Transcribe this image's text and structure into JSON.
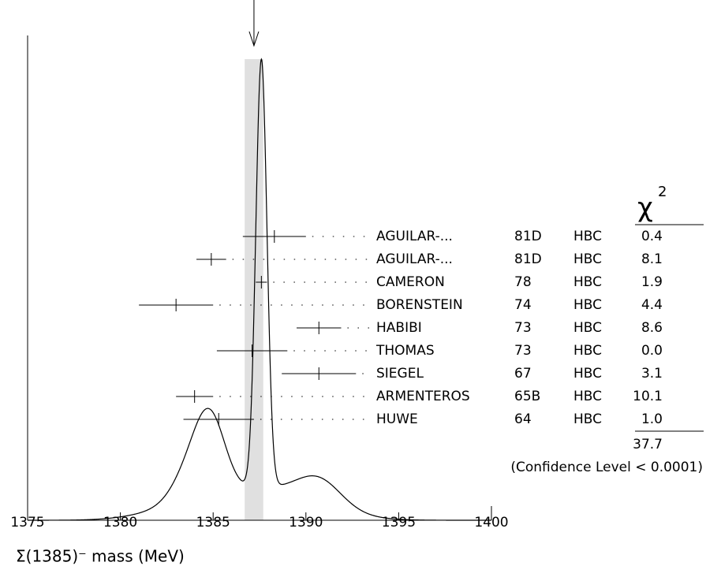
{
  "chart_data": {
    "type": "ideogram",
    "xlim": [
      1375,
      1400
    ],
    "xticks": [
      1375,
      1380,
      1385,
      1390,
      1395,
      1400
    ],
    "x_label": "Σ(1385)⁻ mass (MeV)",
    "average": 1387.2,
    "average_error": 0.5,
    "values": [
      1388.3,
      1384.9,
      1387.6,
      1383.0,
      1390.7,
      1387.1,
      1390.7,
      1384.0,
      1385.3
    ],
    "errors": [
      1.7,
      0.8,
      0.3,
      2.0,
      1.2,
      1.9,
      2.0,
      1.0,
      1.9
    ],
    "names": [
      "AGUILAR-...",
      "AGUILAR-...",
      "CAMERON",
      "BORENSTEIN",
      "HABIBI",
      "THOMAS",
      "SIEGEL",
      "ARMENTEROS",
      "HUWE"
    ],
    "years": [
      "81D",
      "81D",
      "78",
      "74",
      "73",
      "73",
      "67",
      "65B",
      "64"
    ],
    "techniques": [
      "HBC",
      "HBC",
      "HBC",
      "HBC",
      "HBC",
      "HBC",
      "HBC",
      "HBC",
      "HBC"
    ],
    "chi2_symbol": "χ",
    "chi2_power": "2",
    "chi2": [
      "0.4",
      "8.1",
      "1.9",
      "4.4",
      "8.6",
      "0.0",
      "3.1",
      "10.1",
      "1.0"
    ],
    "chi2_total": "37.7",
    "confidence": "(Confidence Level < 0.0001)"
  }
}
